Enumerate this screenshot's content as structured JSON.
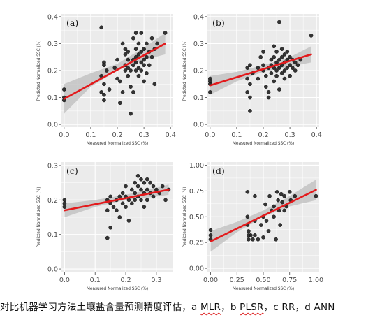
{
  "caption": {
    "main": "对比机器学习方法土壤盐含量预测精度评估，",
    "items": [
      {
        "letter": "a",
        "model": "MLR"
      },
      {
        "letter": "b",
        "model": "PLSR"
      },
      {
        "letter": "c",
        "model": "RR"
      },
      {
        "letter": "d",
        "model": "ANN"
      }
    ],
    "separator": "，"
  },
  "colors": {
    "panel_background": "#ebebeb",
    "grid": "#ffffff",
    "points": "#1a1a1a",
    "fit_line": "#e31a1c",
    "confidence_band": "#bdbdbd"
  },
  "chart_data": [
    {
      "type": "scatter",
      "panel_label": "(a)",
      "xlabel": "Measured Normalized SSC (%)",
      "ylabel": "Predicted Normalized SSC (%)",
      "xlim": [
        -0.01,
        0.41
      ],
      "ylim": [
        -0.01,
        0.41
      ],
      "xticks": [
        0.0,
        0.1,
        0.2,
        0.3,
        0.4
      ],
      "yticks": [
        0.0,
        0.1,
        0.2,
        0.3,
        0.4
      ],
      "tick_labels_x": [
        "0.0",
        "0.1",
        "0.2",
        "0.3",
        "0.4"
      ],
      "tick_labels_y": [
        "0.0",
        "0.1",
        "0.2",
        "0.3",
        "0.4"
      ],
      "grid": true,
      "fit_line": {
        "x": [
          0.0,
          0.38
        ],
        "y": [
          0.095,
          0.3
        ]
      },
      "confidence_band": {
        "x": [
          0.0,
          0.1,
          0.2,
          0.3,
          0.38
        ],
        "lower": [
          0.04,
          0.14,
          0.2,
          0.24,
          0.26
        ],
        "upper": [
          0.15,
          0.19,
          0.225,
          0.285,
          0.34
        ]
      },
      "points": [
        [
          0.0,
          0.13
        ],
        [
          0.0,
          0.1
        ],
        [
          0.0,
          0.09
        ],
        [
          0.14,
          0.36
        ],
        [
          0.15,
          0.23
        ],
        [
          0.15,
          0.22
        ],
        [
          0.16,
          0.2
        ],
        [
          0.14,
          0.18
        ],
        [
          0.15,
          0.15
        ],
        [
          0.14,
          0.12
        ],
        [
          0.15,
          0.11
        ],
        [
          0.17,
          0.13
        ],
        [
          0.15,
          0.09
        ],
        [
          0.19,
          0.21
        ],
        [
          0.2,
          0.24
        ],
        [
          0.2,
          0.17
        ],
        [
          0.21,
          0.16
        ],
        [
          0.21,
          0.08
        ],
        [
          0.22,
          0.12
        ],
        [
          0.22,
          0.3
        ],
        [
          0.23,
          0.28
        ],
        [
          0.23,
          0.26
        ],
        [
          0.23,
          0.22
        ],
        [
          0.23,
          0.2
        ],
        [
          0.24,
          0.27
        ],
        [
          0.24,
          0.24
        ],
        [
          0.24,
          0.21
        ],
        [
          0.24,
          0.18
        ],
        [
          0.25,
          0.2
        ],
        [
          0.25,
          0.14
        ],
        [
          0.26,
          0.32
        ],
        [
          0.26,
          0.24
        ],
        [
          0.26,
          0.22
        ],
        [
          0.27,
          0.34
        ],
        [
          0.27,
          0.28
        ],
        [
          0.27,
          0.25
        ],
        [
          0.27,
          0.23
        ],
        [
          0.27,
          0.2
        ],
        [
          0.28,
          0.3
        ],
        [
          0.28,
          0.26
        ],
        [
          0.28,
          0.21
        ],
        [
          0.28,
          0.18
        ],
        [
          0.29,
          0.34
        ],
        [
          0.29,
          0.27
        ],
        [
          0.29,
          0.23
        ],
        [
          0.29,
          0.2
        ],
        [
          0.3,
          0.28
        ],
        [
          0.3,
          0.24
        ],
        [
          0.3,
          0.22
        ],
        [
          0.3,
          0.16
        ],
        [
          0.31,
          0.3
        ],
        [
          0.31,
          0.25
        ],
        [
          0.31,
          0.19
        ],
        [
          0.32,
          0.27
        ],
        [
          0.32,
          0.22
        ],
        [
          0.33,
          0.32
        ],
        [
          0.33,
          0.25
        ],
        [
          0.34,
          0.28
        ],
        [
          0.34,
          0.15
        ],
        [
          0.35,
          0.3
        ],
        [
          0.38,
          0.34
        ],
        [
          0.26,
          0.12
        ],
        [
          0.25,
          0.04
        ]
      ]
    },
    {
      "type": "scatter",
      "panel_label": "(b)",
      "xlabel": "Measured Normalized SSC (%)",
      "ylabel": "Predicted Normalized SSC (%)",
      "xlim": [
        -0.01,
        0.41
      ],
      "ylim": [
        -0.01,
        0.41
      ],
      "xticks": [
        0.0,
        0.1,
        0.2,
        0.3,
        0.4
      ],
      "yticks": [
        0.0,
        0.1,
        0.2,
        0.3,
        0.4
      ],
      "tick_labels_x": [
        "0.0",
        "0.1",
        "0.2",
        "0.3",
        "0.4"
      ],
      "tick_labels_y": [
        "0.0",
        "0.1",
        "0.2",
        "0.3",
        "0.4"
      ],
      "grid": true,
      "fit_line": {
        "x": [
          0.0,
          0.38
        ],
        "y": [
          0.145,
          0.26
        ]
      },
      "confidence_band": {
        "x": [
          0.0,
          0.1,
          0.2,
          0.3,
          0.38
        ],
        "lower": [
          0.11,
          0.16,
          0.195,
          0.215,
          0.23
        ],
        "upper": [
          0.18,
          0.195,
          0.22,
          0.25,
          0.29
        ]
      },
      "points": [
        [
          0.0,
          0.17
        ],
        [
          0.0,
          0.16
        ],
        [
          0.0,
          0.15
        ],
        [
          0.0,
          0.12
        ],
        [
          0.14,
          0.21
        ],
        [
          0.14,
          0.17
        ],
        [
          0.14,
          0.12
        ],
        [
          0.15,
          0.22
        ],
        [
          0.15,
          0.15
        ],
        [
          0.15,
          0.1
        ],
        [
          0.15,
          0.05
        ],
        [
          0.16,
          0.19
        ],
        [
          0.18,
          0.21
        ],
        [
          0.18,
          0.17
        ],
        [
          0.19,
          0.25
        ],
        [
          0.2,
          0.27
        ],
        [
          0.2,
          0.22
        ],
        [
          0.2,
          0.2
        ],
        [
          0.21,
          0.18
        ],
        [
          0.21,
          0.14
        ],
        [
          0.22,
          0.21
        ],
        [
          0.22,
          0.12
        ],
        [
          0.22,
          0.1
        ],
        [
          0.23,
          0.24
        ],
        [
          0.23,
          0.22
        ],
        [
          0.23,
          0.19
        ],
        [
          0.24,
          0.29
        ],
        [
          0.24,
          0.25
        ],
        [
          0.24,
          0.21
        ],
        [
          0.24,
          0.16
        ],
        [
          0.25,
          0.27
        ],
        [
          0.25,
          0.23
        ],
        [
          0.25,
          0.2
        ],
        [
          0.25,
          0.18
        ],
        [
          0.26,
          0.38
        ],
        [
          0.26,
          0.24
        ],
        [
          0.26,
          0.21
        ],
        [
          0.26,
          0.13
        ],
        [
          0.27,
          0.28
        ],
        [
          0.27,
          0.25
        ],
        [
          0.27,
          0.22
        ],
        [
          0.27,
          0.19
        ],
        [
          0.28,
          0.26
        ],
        [
          0.28,
          0.23
        ],
        [
          0.28,
          0.2
        ],
        [
          0.28,
          0.17
        ],
        [
          0.29,
          0.27
        ],
        [
          0.29,
          0.24
        ],
        [
          0.29,
          0.21
        ],
        [
          0.3,
          0.25
        ],
        [
          0.3,
          0.22
        ],
        [
          0.3,
          0.18
        ],
        [
          0.31,
          0.24
        ],
        [
          0.31,
          0.21
        ],
        [
          0.32,
          0.23
        ],
        [
          0.32,
          0.2
        ],
        [
          0.33,
          0.22
        ],
        [
          0.34,
          0.24
        ],
        [
          0.38,
          0.33
        ]
      ]
    },
    {
      "type": "scatter",
      "panel_label": "(c)",
      "xlabel": "Measured Normalized SSC (%)",
      "ylabel": "Predicted Normalized SSC (%)",
      "xlim": [
        -0.01,
        0.355
      ],
      "ylim": [
        -0.01,
        0.31
      ],
      "xticks": [
        0.0,
        0.1,
        0.2,
        0.3
      ],
      "yticks": [
        0.0,
        0.1,
        0.2,
        0.3
      ],
      "tick_labels_x": [
        "0.0",
        "0.1",
        "0.2",
        "0.3"
      ],
      "tick_labels_y": [
        "0.0",
        "0.1",
        "0.2",
        "0.3"
      ],
      "grid": true,
      "fit_line": {
        "x": [
          0.0,
          0.34
        ],
        "y": [
          0.17,
          0.23
        ]
      },
      "confidence_band": {
        "x": [
          0.0,
          0.1,
          0.2,
          0.3,
          0.34
        ],
        "lower": [
          0.15,
          0.18,
          0.2,
          0.21,
          0.215
        ],
        "upper": [
          0.19,
          0.2,
          0.215,
          0.235,
          0.245
        ]
      },
      "points": [
        [
          0.0,
          0.2
        ],
        [
          0.0,
          0.19
        ],
        [
          0.0,
          0.18
        ],
        [
          0.14,
          0.2
        ],
        [
          0.14,
          0.17
        ],
        [
          0.14,
          0.09
        ],
        [
          0.15,
          0.21
        ],
        [
          0.15,
          0.19
        ],
        [
          0.15,
          0.12
        ],
        [
          0.16,
          0.18
        ],
        [
          0.17,
          0.2
        ],
        [
          0.17,
          0.17
        ],
        [
          0.18,
          0.21
        ],
        [
          0.18,
          0.15
        ],
        [
          0.19,
          0.22
        ],
        [
          0.19,
          0.19
        ],
        [
          0.2,
          0.24
        ],
        [
          0.2,
          0.21
        ],
        [
          0.2,
          0.18
        ],
        [
          0.21,
          0.2
        ],
        [
          0.21,
          0.14
        ],
        [
          0.22,
          0.23
        ],
        [
          0.22,
          0.19
        ],
        [
          0.23,
          0.25
        ],
        [
          0.23,
          0.22
        ],
        [
          0.23,
          0.2
        ],
        [
          0.24,
          0.27
        ],
        [
          0.24,
          0.24
        ],
        [
          0.24,
          0.21
        ],
        [
          0.25,
          0.26
        ],
        [
          0.25,
          0.23
        ],
        [
          0.25,
          0.2
        ],
        [
          0.26,
          0.25
        ],
        [
          0.26,
          0.22
        ],
        [
          0.26,
          0.18
        ],
        [
          0.27,
          0.26
        ],
        [
          0.27,
          0.23
        ],
        [
          0.27,
          0.2
        ],
        [
          0.28,
          0.25
        ],
        [
          0.28,
          0.22
        ],
        [
          0.29,
          0.24
        ],
        [
          0.29,
          0.21
        ],
        [
          0.3,
          0.23
        ],
        [
          0.31,
          0.22
        ],
        [
          0.32,
          0.24
        ],
        [
          0.33,
          0.2
        ],
        [
          0.34,
          0.23
        ]
      ]
    },
    {
      "type": "scatter",
      "panel_label": "(d)",
      "xlabel": "Measured Normalized SSC (%)",
      "ylabel": "Predicted Normalized SSC (%)",
      "xlim": [
        -0.03,
        1.03
      ],
      "ylim": [
        -0.04,
        1.03
      ],
      "xticks": [
        0.0,
        0.25,
        0.5,
        0.75,
        1.0
      ],
      "yticks": [
        0.0,
        0.25,
        0.5,
        0.75,
        1.0
      ],
      "tick_labels_x": [
        "0.00",
        "0.25",
        "0.50",
        "0.75",
        "1.00"
      ],
      "tick_labels_y": [
        "0.00",
        "0.25",
        "0.50",
        "0.75",
        "1.00"
      ],
      "grid": true,
      "fit_line": {
        "x": [
          0.0,
          1.0
        ],
        "y": [
          0.26,
          0.76
        ]
      },
      "confidence_band": {
        "x": [
          0.0,
          0.25,
          0.5,
          0.75,
          1.0
        ],
        "lower": [
          0.16,
          0.35,
          0.5,
          0.6,
          0.66
        ],
        "upper": [
          0.36,
          0.45,
          0.56,
          0.7,
          0.86
        ]
      },
      "points": [
        [
          0.0,
          0.37
        ],
        [
          0.0,
          0.32
        ],
        [
          0.0,
          0.28
        ],
        [
          0.35,
          0.74
        ],
        [
          0.35,
          0.5
        ],
        [
          0.35,
          0.42
        ],
        [
          0.36,
          0.36
        ],
        [
          0.36,
          0.32
        ],
        [
          0.36,
          0.28
        ],
        [
          0.38,
          0.32
        ],
        [
          0.4,
          0.28
        ],
        [
          0.42,
          0.7
        ],
        [
          0.42,
          0.46
        ],
        [
          0.42,
          0.32
        ],
        [
          0.45,
          0.28
        ],
        [
          0.48,
          0.42
        ],
        [
          0.5,
          0.5
        ],
        [
          0.5,
          0.3
        ],
        [
          0.52,
          0.62
        ],
        [
          0.53,
          0.46
        ],
        [
          0.55,
          0.36
        ],
        [
          0.56,
          0.7
        ],
        [
          0.58,
          0.56
        ],
        [
          0.6,
          0.6
        ],
        [
          0.6,
          0.5
        ],
        [
          0.62,
          0.28
        ],
        [
          0.63,
          0.74
        ],
        [
          0.64,
          0.66
        ],
        [
          0.65,
          0.56
        ],
        [
          0.66,
          0.42
        ],
        [
          0.67,
          0.72
        ],
        [
          0.68,
          0.64
        ],
        [
          0.7,
          0.56
        ],
        [
          0.7,
          0.7
        ],
        [
          0.72,
          0.6
        ],
        [
          0.75,
          0.74
        ],
        [
          0.76,
          0.66
        ],
        [
          0.8,
          0.7
        ],
        [
          1.0,
          0.7
        ]
      ]
    }
  ]
}
